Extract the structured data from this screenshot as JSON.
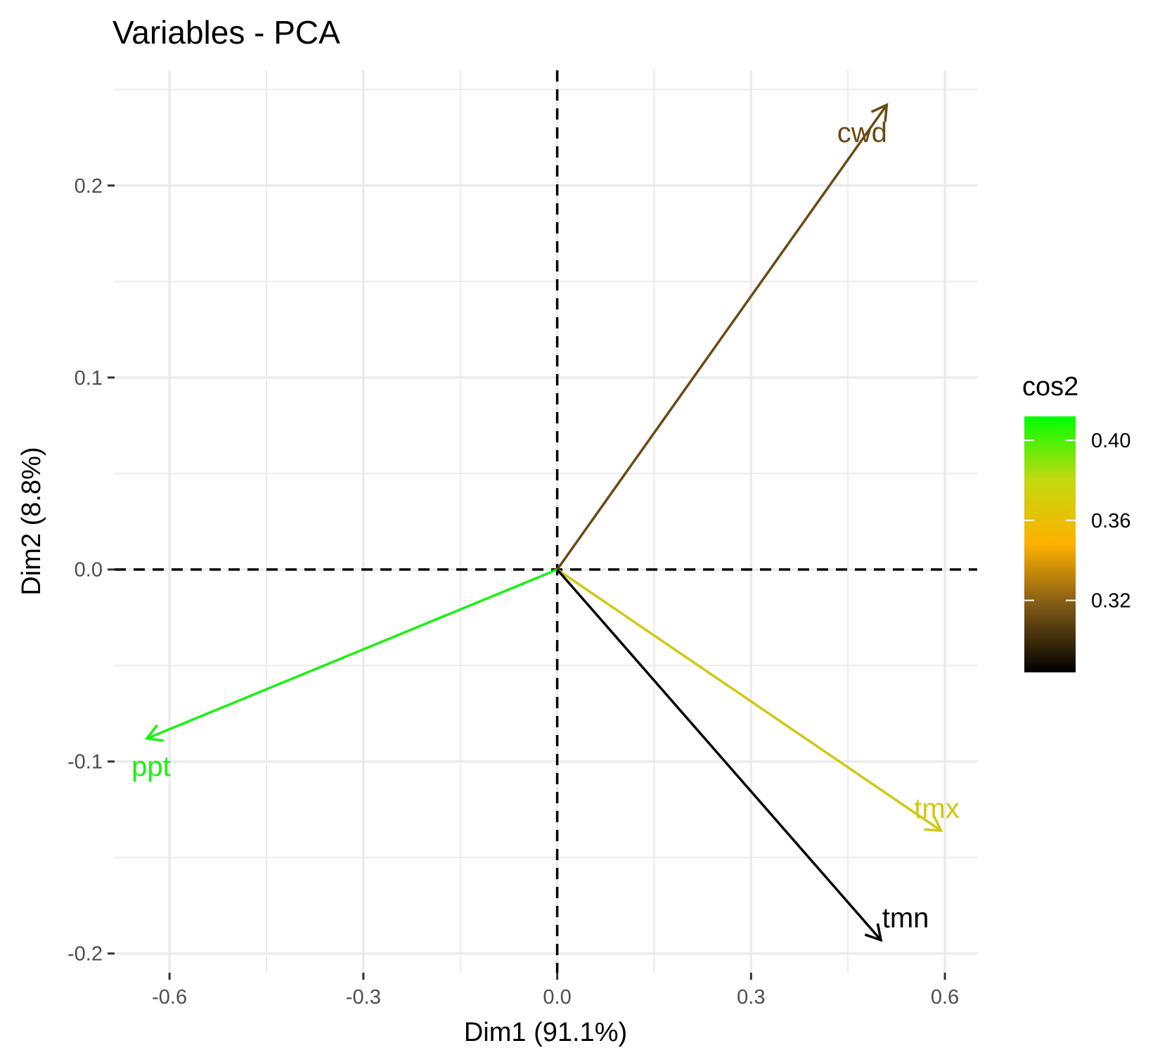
{
  "chart_data": {
    "type": "scatter",
    "title": "Variables - PCA",
    "xlabel": "Dim1 (91.1%)",
    "ylabel": "Dim2 (8.8%)",
    "xlim": [
      -0.685,
      0.65
    ],
    "ylim": [
      -0.21,
      0.26
    ],
    "x_ticks": [
      -0.6,
      -0.3,
      0.0,
      0.3,
      0.6
    ],
    "x_tick_labels": [
      "-0.6",
      "-0.3",
      "0.0",
      "0.3",
      "0.6"
    ],
    "y_ticks": [
      -0.2,
      -0.1,
      0.0,
      0.1,
      0.2
    ],
    "y_tick_labels": [
      "-0.2",
      "-0.1",
      "0.0",
      "0.1",
      "0.2"
    ],
    "grid": true,
    "reference_lines": {
      "x": 0,
      "y": 0,
      "style": "dashed"
    },
    "variables": [
      {
        "name": "cwd",
        "x": 0.51,
        "y": 0.242,
        "cos2": 0.31,
        "color": "#6B4A14"
      },
      {
        "name": "ppt",
        "x": -0.635,
        "y": -0.088,
        "cos2": 0.41,
        "color": "#19F20F"
      },
      {
        "name": "tmx",
        "x": 0.594,
        "y": -0.136,
        "cos2": 0.375,
        "color": "#CEC914"
      },
      {
        "name": "tmn",
        "x": 0.501,
        "y": -0.193,
        "cos2": 0.288,
        "color": "#000000"
      }
    ],
    "legend": {
      "title": "cos2",
      "placement": "right",
      "range": [
        0.284,
        0.412
      ],
      "ticks": [
        0.32,
        0.36,
        0.4
      ],
      "tick_labels": [
        "0.32",
        "0.36",
        "0.40"
      ],
      "gradient_colors": [
        "#000000",
        "#7A5616",
        "#FFB000",
        "#C5D90F",
        "#00FF00"
      ]
    }
  }
}
